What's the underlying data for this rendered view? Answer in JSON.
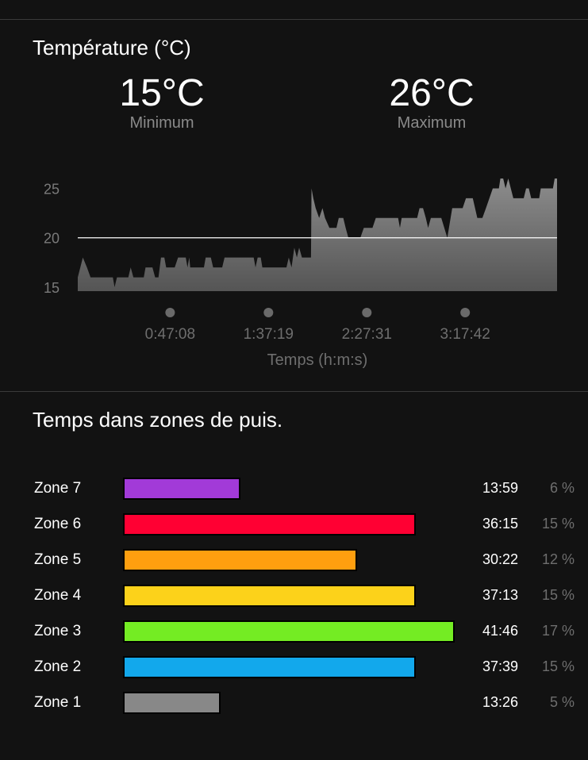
{
  "temperature": {
    "title": "Température (°C)",
    "min_value": "15°C",
    "min_label": "Minimum",
    "max_value": "26°C",
    "max_label": "Maximum"
  },
  "chart_data": [
    {
      "type": "area",
      "xlabel": "Temps (h:m:s)",
      "ylabel": "",
      "x_unit": "minutes",
      "xlim": [
        0,
        244.6
      ],
      "ylim": [
        14.6,
        26
      ],
      "y_ticks": [
        "15",
        "20",
        "25"
      ],
      "x_ticks": [
        {
          "value": 47.13,
          "label": "0:47:08"
        },
        {
          "value": 97.32,
          "label": "1:37:19"
        },
        {
          "value": 147.52,
          "label": "2:27:31"
        },
        {
          "value": 197.7,
          "label": "3:17:42"
        }
      ],
      "reference_line": 20,
      "grid": false,
      "colors": {
        "fill_top": "#8c8c8c",
        "fill_bottom": "#555555",
        "reference_line": "#ffffff"
      },
      "x": [
        0,
        2.6,
        4.7,
        6.5,
        17.9,
        18.8,
        20.0,
        25.8,
        27.0,
        28.4,
        33.7,
        34.6,
        38.1,
        39.5,
        41.2,
        42.5,
        44.2,
        45.1,
        49.5,
        51.2,
        55.1,
        56.0,
        56.9,
        57.4,
        64.4,
        65.3,
        67.9,
        69.1,
        73.7,
        74.9,
        89.8,
        90.7,
        91.8,
        93.4,
        94.2,
        106.5,
        107.7,
        109.1,
        110.5,
        111.8,
        113.0,
        114.4,
        119.0,
        119.3,
        120.2,
        121.4,
        123.2,
        124.9,
        126.2,
        128.4,
        132.0,
        133.2,
        135.5,
        136.7,
        138.1,
        144.2,
        146.0,
        150.4,
        152.1,
        163.5,
        164.4,
        165.3,
        173.2,
        174.4,
        176.2,
        177.6,
        178.8,
        180.2,
        185.5,
        188.6,
        191.1,
        196.4,
        198.1,
        201.6,
        203.9,
        206.5,
        208.3,
        211.8,
        214.9,
        215.7,
        217.1,
        218.3,
        219.7,
        222.3,
        227.6,
        228.8,
        230.2,
        231.4,
        235.5,
        236.3,
        242.5,
        243.4,
        244.6
      ],
      "y": [
        16,
        18,
        17,
        16,
        16,
        15,
        16,
        16,
        17,
        16,
        16,
        17,
        17,
        16,
        16,
        18,
        18,
        17,
        17,
        18,
        18,
        17,
        18,
        17,
        17,
        18,
        18,
        17,
        17,
        18,
        18,
        17,
        18,
        18,
        17,
        17,
        18,
        17,
        19,
        18,
        19,
        18,
        18,
        25,
        24,
        23,
        22,
        23,
        22,
        21,
        21,
        22,
        22,
        21,
        20,
        20,
        21,
        21,
        22,
        22,
        21,
        22,
        22,
        23,
        23,
        22,
        21,
        22,
        22,
        20,
        23,
        23,
        24,
        24,
        22,
        22,
        23,
        25,
        25,
        26,
        26,
        25,
        26,
        24,
        24,
        25,
        25,
        24,
        24,
        25,
        25,
        26,
        26
      ]
    },
    {
      "type": "bar",
      "orientation": "horizontal",
      "title": "Temps dans zones de puis.",
      "categories": [
        "Zone 7",
        "Zone 6",
        "Zone 5",
        "Zone 4",
        "Zone 3",
        "Zone 2",
        "Zone 1"
      ],
      "times": [
        "13:59",
        "36:15",
        "30:22",
        "37:13",
        "41:46",
        "37:39",
        "13:26"
      ],
      "percent_labels": [
        "6 %",
        "15 %",
        "12 %",
        "15 %",
        "17 %",
        "15 %",
        "5 %"
      ],
      "values": [
        6,
        15,
        12,
        15,
        17,
        15,
        5
      ],
      "colors": [
        "#a23ad8",
        "#ff0033",
        "#ff9f0f",
        "#fcd21a",
        "#74ec23",
        "#12a8ec",
        "#888888"
      ]
    }
  ]
}
